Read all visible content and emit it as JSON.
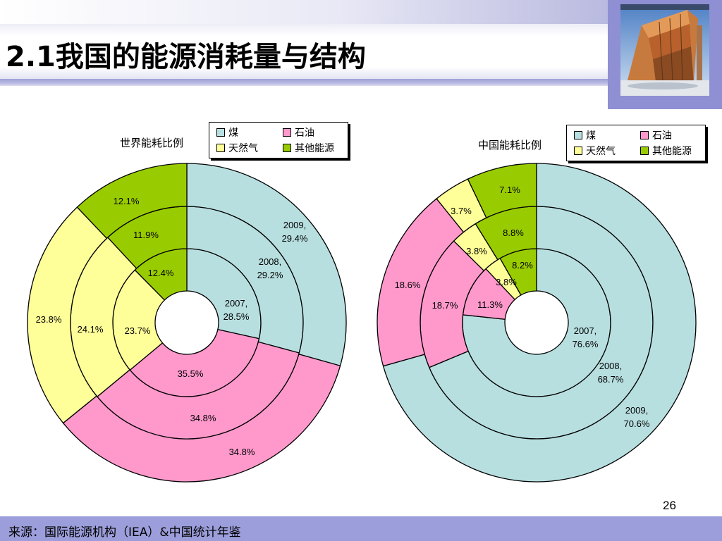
{
  "page": {
    "title": "2.1我国的能源消耗量与结构",
    "page_number": "26",
    "source": "来源：国际能源机构（IEA）&中国统计年鉴"
  },
  "colors": {
    "coal": "#b8dfe0",
    "oil": "#ff99cc",
    "gas": "#ffff99",
    "other": "#99cc00",
    "footer": "#9c9edb",
    "photo_frame": "#8f8fd3"
  },
  "legend": {
    "items": [
      {
        "key": "coal",
        "label": "煤"
      },
      {
        "key": "oil",
        "label": "石油"
      },
      {
        "key": "gas",
        "label": "天然气"
      },
      {
        "key": "other",
        "label": "其他能源"
      }
    ]
  },
  "chart_data": [
    {
      "type": "pie",
      "variant": "multi-ring-donut",
      "title": "世界能耗比例",
      "categories": [
        "煤",
        "石油",
        "天然气",
        "其他能源"
      ],
      "series": [
        {
          "name": "2007",
          "values": [
            28.5,
            35.5,
            23.7,
            12.4
          ],
          "ring": "inner"
        },
        {
          "name": "2008",
          "values": [
            29.2,
            34.8,
            24.1,
            11.9
          ],
          "ring": "middle"
        },
        {
          "name": "2009",
          "values": [
            29.4,
            34.8,
            23.8,
            12.1
          ],
          "ring": "outer"
        }
      ],
      "value_labels": [
        [
          "2007,\n28.5%",
          "35.5%",
          "23.7%",
          "12.4%"
        ],
        [
          "2008,\n29.2%",
          "34.8%",
          "24.1%",
          "11.9%"
        ],
        [
          "2009,\n29.4%",
          "34.8%",
          "23.8%",
          "12.1%"
        ]
      ],
      "legend_position": "top-right"
    },
    {
      "type": "pie",
      "variant": "multi-ring-donut",
      "title": "中国能耗比例",
      "categories": [
        "煤",
        "石油",
        "天然气",
        "其他能源"
      ],
      "series": [
        {
          "name": "2007",
          "values": [
            76.6,
            11.3,
            3.8,
            8.2
          ],
          "ring": "inner"
        },
        {
          "name": "2008",
          "values": [
            68.7,
            18.7,
            3.8,
            8.8
          ],
          "ring": "middle"
        },
        {
          "name": "2009",
          "values": [
            70.6,
            18.6,
            3.7,
            7.1
          ],
          "ring": "outer"
        }
      ],
      "value_labels": [
        [
          "2007,\n76.6%",
          "11.3%",
          "3.8%",
          "8.2%"
        ],
        [
          "2008,\n68.7%",
          "18.7%",
          "3.8%",
          "8.8%"
        ],
        [
          "2009,\n70.6%",
          "18.6%",
          "3.7%",
          "7.1%"
        ]
      ],
      "legend_position": "top-right"
    }
  ]
}
